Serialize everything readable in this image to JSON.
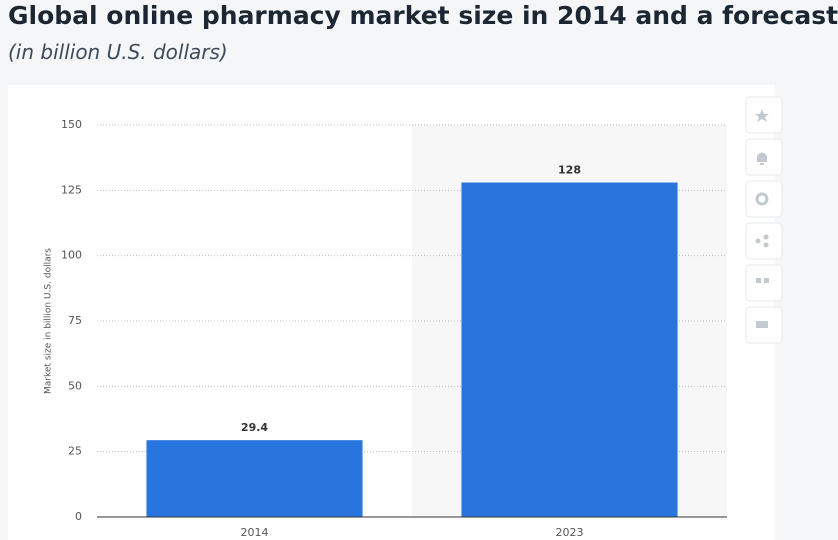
{
  "chart_data": {
    "type": "bar",
    "title": "Global online pharmacy market size in 2014 and a forecast",
    "subtitle": "(in billion U.S. dollars)",
    "y_label": "Market size in billion U.S. dollars",
    "categories": [
      "2014",
      "2023"
    ],
    "values": [
      29.4,
      128
    ],
    "color": "#2876dd",
    "ylim": [
      0,
      150
    ],
    "yticks": [
      0,
      25,
      50,
      75,
      100,
      125,
      150
    ],
    "grid": true
  }
}
